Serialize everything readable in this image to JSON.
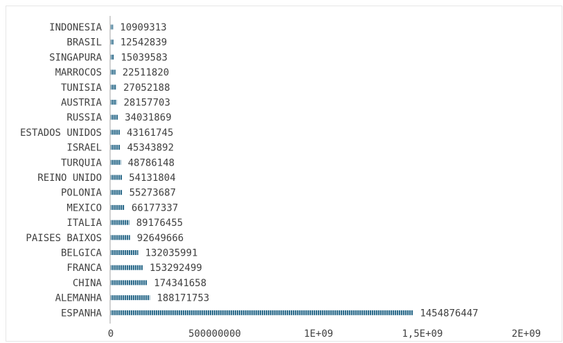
{
  "chart_data": {
    "type": "bar",
    "orientation": "horizontal",
    "title": "",
    "xlabel": "",
    "ylabel": "",
    "categories": [
      "ESPANHA",
      "ALEMANHA",
      "CHINA",
      "FRANCA",
      "BELGICA",
      "PAISES BAIXOS",
      "ITALIA",
      "MEXICO",
      "POLONIA",
      "REINO UNIDO",
      "TURQUIA",
      "ISRAEL",
      "ESTADOS UNIDOS",
      "RUSSIA",
      "AUSTRIA",
      "TUNISIA",
      "MARROCOS",
      "SINGAPURA",
      "BRASIL",
      "INDONESIA"
    ],
    "values": [
      1454876447,
      188171753,
      174341658,
      153292499,
      132035991,
      92649666,
      89176455,
      66177337,
      55273687,
      54131804,
      48786148,
      45343892,
      43161745,
      34031869,
      28157703,
      27052188,
      22511820,
      15039583,
      12542839,
      10909313
    ],
    "data_labels": [
      "1454876447",
      "188171753",
      "174341658",
      "153292499",
      "132035991",
      "92649666",
      "89176455",
      "66177337",
      "55273687",
      "54131804",
      "48786148",
      "45343892",
      "43161745",
      "34031869",
      "28157703",
      "27052188",
      "22511820",
      "15039583",
      "12542839",
      "10909313"
    ],
    "xlim": [
      0,
      2000000000
    ],
    "xticks": [
      0,
      500000000,
      1000000000,
      1500000000,
      2000000000
    ],
    "xtick_labels": [
      "0",
      "500000000",
      "1E+09",
      "1,5E+09",
      "2E+09"
    ],
    "grid": false,
    "legend": "none",
    "bar_color": "#2e6b8a",
    "bar_stripe_color": "#cfe1ea"
  }
}
